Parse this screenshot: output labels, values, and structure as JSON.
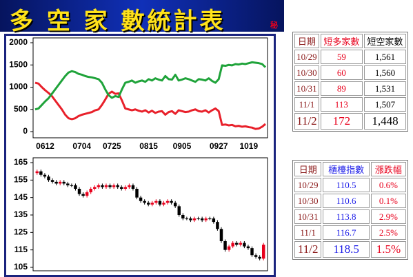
{
  "header": {
    "title": "多 空 家 數統計表",
    "badge": "秘"
  },
  "chart_data": [
    {
      "type": "line",
      "categories": [
        null,
        null,
        null,
        "0612",
        null,
        null,
        null,
        null,
        null,
        null,
        null,
        null,
        null,
        null,
        "0704",
        null,
        null,
        null,
        null,
        null,
        null,
        null,
        null,
        "0725",
        null,
        null,
        null,
        null,
        null,
        null,
        null,
        null,
        null,
        null,
        "0815",
        null,
        null,
        null,
        null,
        null,
        null,
        null,
        null,
        null,
        "0905",
        null,
        null,
        null,
        null,
        null,
        null,
        null,
        null,
        null,
        null,
        "0927",
        null,
        null,
        null,
        null,
        null,
        null,
        null,
        null,
        "1019",
        null,
        null,
        null,
        null,
        null
      ],
      "series": [
        {
          "color": "#e8202a",
          "values": [
            1100,
            1080,
            1000,
            930,
            870,
            800,
            700,
            600,
            500,
            380,
            300,
            280,
            300,
            350,
            380,
            400,
            420,
            440,
            480,
            500,
            600,
            720,
            850,
            900,
            850,
            860,
            700,
            520,
            500,
            480,
            500,
            470,
            450,
            480,
            430,
            470,
            420,
            450,
            460,
            380,
            440,
            460,
            400,
            480,
            460,
            440,
            450,
            480,
            500,
            460,
            450,
            480,
            430,
            480,
            520,
            460,
            150,
            160,
            140,
            150,
            120,
            130,
            110,
            120,
            100,
            90,
            60,
            70,
            110,
            172
          ]
        },
        {
          "color": "#1fa33a",
          "values": [
            500,
            520,
            600,
            680,
            750,
            850,
            950,
            1050,
            1150,
            1250,
            1330,
            1360,
            1340,
            1300,
            1280,
            1250,
            1230,
            1220,
            1200,
            1180,
            1100,
            950,
            820,
            760,
            800,
            780,
            950,
            1100,
            1120,
            1150,
            1100,
            1130,
            1150,
            1120,
            1180,
            1150,
            1200,
            1170,
            1150,
            1250,
            1180,
            1170,
            1280,
            1150,
            1170,
            1200,
            1180,
            1150,
            1120,
            1180,
            1170,
            1150,
            1200,
            1140,
            1100,
            1180,
            1490,
            1480,
            1500,
            1490,
            1520,
            1510,
            1530,
            1520,
            1540,
            1560,
            1550,
            1540,
            1520,
            1448
          ]
        }
      ],
      "ylim": [
        0,
        2000
      ],
      "yticks": [
        0,
        500,
        1000,
        1500,
        2000
      ]
    },
    {
      "type": "candlestick",
      "up_color": "#e8001c",
      "down_color": "#000000",
      "open": [
        159,
        160,
        158,
        157,
        155,
        154,
        153,
        154,
        153,
        152,
        152,
        150,
        147,
        146,
        148,
        150,
        151,
        152,
        151,
        152,
        151,
        152,
        151,
        150,
        151,
        152,
        150,
        145,
        143,
        142,
        141,
        142,
        143,
        141,
        142,
        143,
        142,
        140,
        135,
        133,
        133,
        132,
        133,
        133,
        132,
        133,
        133,
        131,
        127,
        120,
        115,
        117,
        119,
        118,
        119,
        117,
        116,
        112,
        111,
        110
      ],
      "high": [
        161,
        161,
        159,
        158,
        156,
        155,
        155,
        155,
        154,
        153,
        153,
        151,
        148,
        149,
        151,
        152,
        153,
        153,
        153,
        153,
        153,
        153,
        152,
        152,
        153,
        153,
        151,
        146,
        144,
        143,
        143,
        144,
        144,
        143,
        144,
        144,
        143,
        141,
        136,
        134,
        134,
        134,
        134,
        134,
        134,
        134,
        134,
        132,
        128,
        121,
        118,
        120,
        120,
        120,
        120,
        118,
        117,
        113,
        112,
        119
      ],
      "low": [
        158,
        157,
        156,
        154,
        153,
        152,
        152,
        152,
        151,
        151,
        149,
        146,
        145,
        145,
        147,
        149,
        150,
        150,
        150,
        150,
        150,
        150,
        149,
        149,
        150,
        149,
        144,
        142,
        141,
        140,
        140,
        141,
        140,
        140,
        141,
        141,
        139,
        134,
        132,
        132,
        131,
        131,
        132,
        131,
        131,
        132,
        130,
        126,
        119,
        114,
        114,
        116,
        117,
        117,
        116,
        115,
        111,
        110,
        109,
        109
      ],
      "close": [
        160,
        158,
        157,
        155,
        154,
        153,
        154,
        153,
        152,
        152,
        150,
        147,
        146,
        148,
        150,
        151,
        152,
        151,
        152,
        151,
        152,
        151,
        150,
        151,
        152,
        150,
        145,
        143,
        142,
        141,
        142,
        143,
        141,
        142,
        143,
        142,
        140,
        135,
        133,
        133,
        132,
        133,
        133,
        132,
        133,
        133,
        131,
        127,
        120,
        115,
        117,
        119,
        118,
        119,
        117,
        116,
        112,
        111,
        110,
        118
      ],
      "ylim": [
        105,
        165
      ],
      "yticks": [
        105,
        115,
        125,
        135,
        145,
        155,
        165
      ]
    }
  ],
  "tables": [
    {
      "columns": [
        "日期",
        "短多家數",
        "短空家數"
      ],
      "rows": [
        [
          "10/29",
          "59",
          "1,561"
        ],
        [
          "10/30",
          "60",
          "1,560"
        ],
        [
          "10/31",
          "89",
          "1,531"
        ],
        [
          "11/1",
          "113",
          "1,507"
        ],
        [
          "11/2",
          "172",
          "1,448"
        ]
      ]
    },
    {
      "columns": [
        "日期",
        "櫃檯指數",
        "漲跌幅"
      ],
      "rows": [
        [
          "10/29",
          "110.5",
          "0.6%"
        ],
        [
          "10/30",
          "110.6",
          "0.1%"
        ],
        [
          "10/31",
          "113.8",
          "2.9%"
        ],
        [
          "11/1",
          "116.7",
          "2.5%"
        ],
        [
          "11/2",
          "118.5",
          "1.5%"
        ]
      ]
    }
  ]
}
